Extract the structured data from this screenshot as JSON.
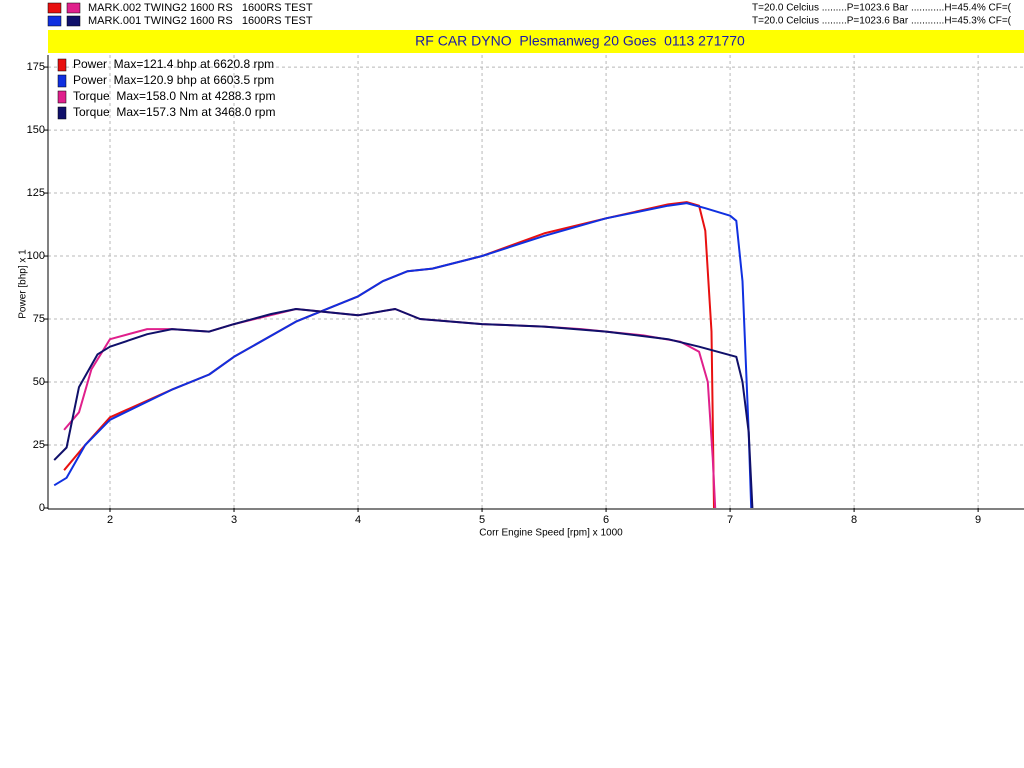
{
  "header": {
    "runs": [
      {
        "label": "MARK.002 TWING2 1600 RS   1600RS TEST",
        "conditions": "T=20.0 Celcius .........P=1023.6 Bar ............H=45.4% CF=("
      },
      {
        "label": "MARK.001 TWING2 1600 RS   1600RS TEST",
        "conditions": "T=20.0 Celcius .........P=1023.6 Bar ............H=45.3% CF=("
      }
    ],
    "banner": "RF CAR DYNO  Plesmanweg 20 Goes  0113 271770"
  },
  "chart_data": {
    "type": "line",
    "x_label": "Corr Engine Speed [rpm] x 1000",
    "y_label": "Power [bhp] x 1",
    "xlim": [
      1.5,
      9.37
    ],
    "ylim": [
      0,
      179
    ],
    "xticks": [
      2,
      3,
      4,
      5,
      6,
      7,
      8,
      9
    ],
    "yticks": [
      0,
      25,
      50,
      75,
      100,
      125,
      150,
      175
    ],
    "grid": true,
    "series": [
      {
        "name": "Power  Max=121.4 bhp at 6620.8 rpm",
        "color": "#e81010",
        "x": [
          1.63,
          1.8,
          2.0,
          2.5,
          2.8,
          3.0,
          3.5,
          3.8,
          4.0,
          4.2,
          4.4,
          4.6,
          5.0,
          5.5,
          6.0,
          6.5,
          6.65,
          6.75,
          6.8,
          6.85,
          6.87
        ],
        "values": [
          15,
          25,
          36,
          47,
          53,
          60,
          74,
          80,
          84,
          90,
          94,
          95,
          100,
          109,
          115,
          120.5,
          121.4,
          120,
          110,
          70,
          0
        ]
      },
      {
        "name": "Power  Max=120.9 bhp at 6603.5 rpm",
        "color": "#1030e0",
        "x": [
          1.55,
          1.65,
          1.8,
          2.0,
          2.5,
          2.8,
          3.0,
          3.5,
          3.8,
          4.0,
          4.2,
          4.4,
          4.6,
          5.0,
          5.5,
          6.0,
          6.5,
          6.65,
          6.8,
          7.0,
          7.05,
          7.1,
          7.15,
          7.17
        ],
        "values": [
          9,
          12,
          25,
          35,
          47,
          53,
          60,
          74,
          80,
          84,
          90,
          94,
          95,
          100,
          108,
          115,
          120,
          121,
          119,
          116,
          114,
          90,
          30,
          0
        ]
      },
      {
        "name": "Torque  Max=158.0 Nm at 4288.3 rpm",
        "color": "#e0208c",
        "x": [
          1.63,
          1.75,
          1.85,
          2.0,
          2.3,
          2.5,
          2.8,
          3.0,
          3.5,
          3.7,
          4.0,
          4.3,
          4.5,
          5.0,
          5.5,
          5.8,
          6.0,
          6.3,
          6.6,
          6.75,
          6.82,
          6.86,
          6.88
        ],
        "values": [
          31,
          38,
          55,
          67,
          71,
          71,
          70,
          73,
          79,
          78,
          76.5,
          79,
          75,
          73,
          72,
          71,
          70,
          68.5,
          66,
          62,
          50,
          20,
          0
        ]
      },
      {
        "name": "Torque  Max=157.3 Nm at 3468.0 rpm",
        "color": "#10106a",
        "x": [
          1.55,
          1.65,
          1.75,
          1.9,
          2.0,
          2.3,
          2.5,
          2.8,
          3.0,
          3.3,
          3.5,
          4.0,
          4.3,
          4.5,
          5.0,
          5.5,
          6.0,
          6.5,
          6.75,
          7.05,
          7.1,
          7.15,
          7.18
        ],
        "values": [
          19,
          24,
          48,
          61,
          64,
          69,
          71,
          70,
          73,
          77,
          79,
          76.5,
          79,
          75,
          73,
          72,
          70,
          67,
          64,
          60,
          50,
          30,
          0
        ]
      }
    ]
  }
}
